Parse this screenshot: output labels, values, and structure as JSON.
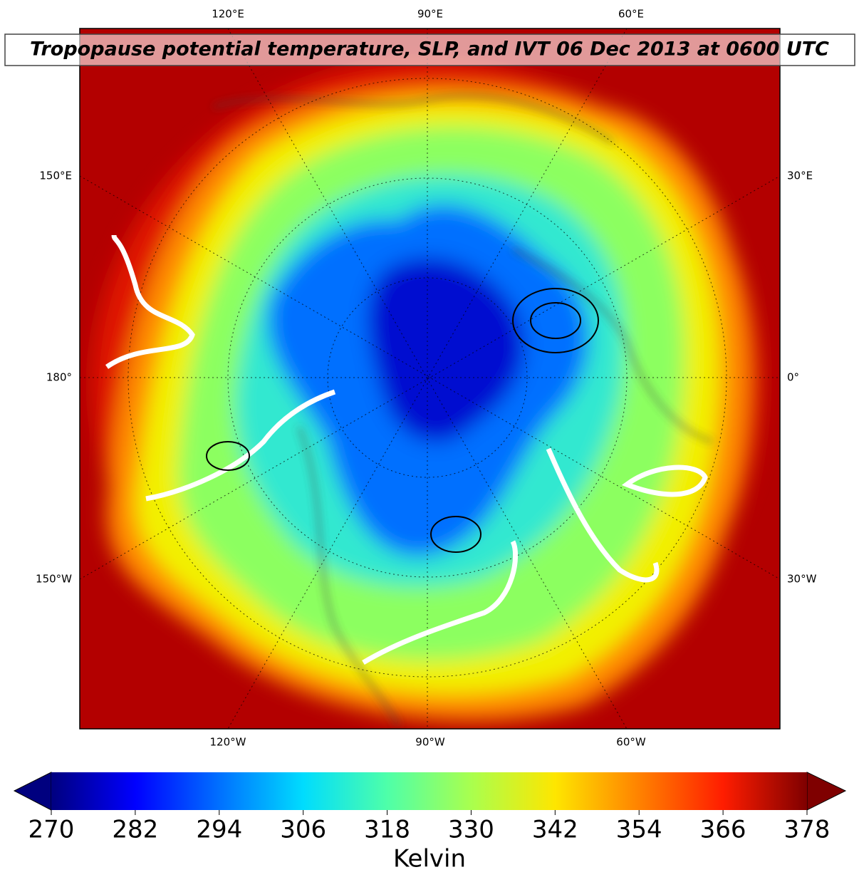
{
  "title": "Tropopause potential temperature, SLP, and IVT 06 Dec 2013 at 0600 UTC",
  "lon_labels": {
    "top": [
      "120°E",
      "90°E",
      "60°E"
    ],
    "left": [
      "150°E",
      "180°",
      "150°W"
    ],
    "right": [
      "30°E",
      "0°",
      "30°W"
    ],
    "bottom": [
      "120°W",
      "90°W",
      "60°W"
    ]
  },
  "colorbar": {
    "label": "Kelvin",
    "lim": [
      270,
      378
    ],
    "ticks": [
      270,
      282,
      294,
      306,
      318,
      330,
      342,
      354,
      366,
      378
    ],
    "colormap": [
      "#00007f",
      "#0000ff",
      "#0070ff",
      "#00dcfe",
      "#4effa9",
      "#a9ff4e",
      "#fee600",
      "#ff8200",
      "#ff1d00",
      "#7f0000"
    ]
  }
}
